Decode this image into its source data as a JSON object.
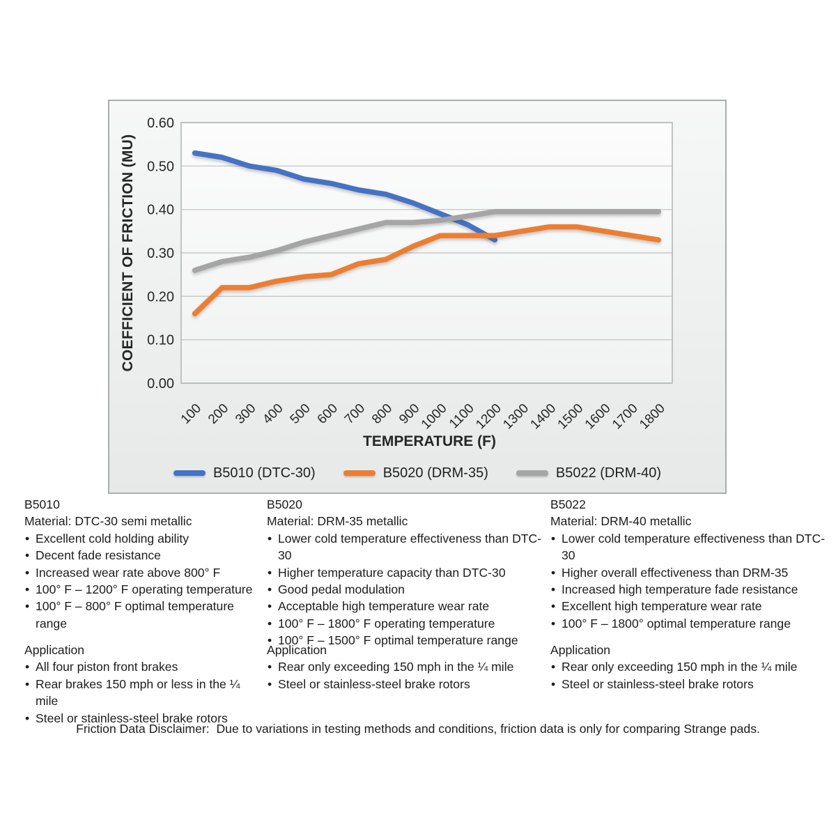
{
  "chart_data": {
    "type": "line",
    "title": "",
    "xlabel": "TEMPERATURE (F)",
    "ylabel": "COEFFICIENT OF FRICTION (MU)",
    "x": [
      100,
      200,
      300,
      400,
      500,
      600,
      700,
      800,
      900,
      1000,
      1100,
      1200,
      1300,
      1400,
      1500,
      1600,
      1700,
      1800
    ],
    "ylim": [
      0,
      0.6
    ],
    "ytick_step": 0.1,
    "grid": "horizontal",
    "legend_position": "bottom",
    "series": [
      {
        "name": "B5010 (DTC-30)",
        "color": "#4472C4",
        "values": [
          0.53,
          0.52,
          0.5,
          0.49,
          0.47,
          0.46,
          0.445,
          0.435,
          0.415,
          0.39,
          0.365,
          0.33
        ]
      },
      {
        "name": "B5020 (DRM-35)",
        "color": "#ED7D31",
        "values": [
          0.16,
          0.22,
          0.22,
          0.235,
          0.245,
          0.25,
          0.275,
          0.285,
          0.315,
          0.34,
          0.34,
          0.34,
          0.35,
          0.36,
          0.36,
          0.35,
          0.34,
          0.33
        ]
      },
      {
        "name": "B5022 (DRM-40)",
        "color": "#A5A5A5",
        "values": [
          0.26,
          0.28,
          0.29,
          0.305,
          0.325,
          0.34,
          0.355,
          0.37,
          0.37,
          0.375,
          0.385,
          0.395,
          0.395,
          0.395,
          0.395,
          0.395,
          0.395,
          0.395
        ]
      }
    ]
  },
  "products": [
    {
      "name": "B5010",
      "material": "Material: DTC-30 semi metallic",
      "features": [
        "Excellent cold holding ability",
        "Decent fade resistance",
        "Increased wear rate above 800° F",
        "100° F – 1200° F operating temperature",
        "100° F – 800° F optimal temperature range"
      ],
      "application_title": "Application",
      "applications": [
        "All four piston front brakes",
        "Rear brakes 150 mph or less in the ¼ mile",
        "Steel or stainless-steel brake rotors"
      ]
    },
    {
      "name": "B5020",
      "material": "Material: DRM-35 metallic",
      "features": [
        "Lower cold temperature effectiveness than DTC-30",
        "Higher temperature capacity than DTC-30",
        "Good pedal modulation",
        "Acceptable high temperature wear rate",
        "100° F – 1800° F operating temperature",
        "100° F – 1500° F optimal temperature range"
      ],
      "application_title": "Application",
      "applications": [
        "Rear only exceeding 150 mph in the ¼ mile",
        "Steel or stainless-steel brake rotors"
      ]
    },
    {
      "name": "B5022",
      "material": "Material: DRM-40 metallic",
      "features": [
        "Lower cold temperature effectiveness than DTC-30",
        "Higher overall effectiveness than DRM-35",
        "Increased high temperature fade resistance",
        "Excellent high temperature wear rate",
        "100° F – 1800° optimal temperature range"
      ],
      "application_title": "Application",
      "applications": [
        "Rear only exceeding 150 mph in the ¼ mile",
        "Steel or stainless-steel brake rotors"
      ]
    }
  ],
  "disclaimer": "Friction Data Disclaimer:  Due to variations in testing methods and conditions, friction data is only for comparing Strange pads."
}
